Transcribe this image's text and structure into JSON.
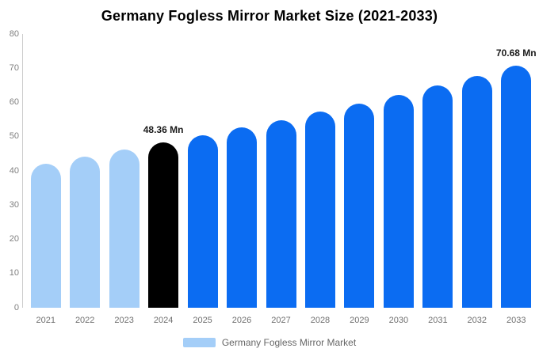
{
  "chart_data": {
    "type": "bar",
    "title": "Germany Fogless Mirror Market Size (2021-2033)",
    "xlabel": "",
    "ylabel": "",
    "unit": "Mn",
    "categories": [
      "2021",
      "2022",
      "2023",
      "2024",
      "2025",
      "2026",
      "2027",
      "2028",
      "2029",
      "2030",
      "2031",
      "2032",
      "2033"
    ],
    "values": [
      42.1,
      44.2,
      46.3,
      48.36,
      50.44,
      52.62,
      54.89,
      57.25,
      59.72,
      62.3,
      64.98,
      67.78,
      70.68
    ],
    "styles": [
      "historical",
      "historical",
      "historical",
      "highlight",
      "forecast",
      "forecast",
      "forecast",
      "forecast",
      "forecast",
      "forecast",
      "forecast",
      "forecast",
      "forecast"
    ],
    "ylim": [
      0,
      80
    ],
    "yticks": [
      0,
      10,
      20,
      30,
      40,
      50,
      60,
      70,
      80
    ],
    "grid": false,
    "legend_position": "bottom",
    "legend": {
      "label": "Germany Fogless Mirror Market",
      "swatch_color": "#a4cef8"
    },
    "annotations": [
      {
        "category": "2024",
        "text": "48.36 Mn"
      },
      {
        "category": "2033",
        "text": "70.68 Mn"
      }
    ],
    "colors": {
      "historical": "#a4cef8",
      "highlight": "#000000",
      "forecast": "#0b6cf2",
      "axis_line": "#cccccc",
      "tick_label": "#808080",
      "annotation": "#1a1a1a",
      "title": "#000000",
      "background": "#ffffff"
    }
  }
}
